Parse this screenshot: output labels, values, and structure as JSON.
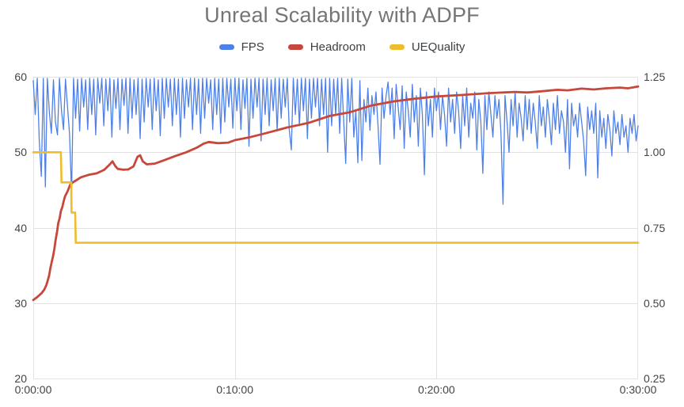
{
  "title": "Unreal Scalability with ADPF",
  "chart_data": {
    "type": "line",
    "title": "Unreal Scalability with ADPF",
    "grid": true,
    "grid_color": "#e2e2e2",
    "legend_position": "top",
    "x_axis": {
      "unit": "elapsed time h:mm:ss",
      "min": 0,
      "max": 30,
      "ticks": [
        {
          "t": 0,
          "label": "0:00:00"
        },
        {
          "t": 10,
          "label": "0:10:00"
        },
        {
          "t": 20,
          "label": "0:20:00"
        },
        {
          "t": 30,
          "label": "0:30:00"
        }
      ]
    },
    "left_axis": {
      "min": 20,
      "max": 60,
      "ticks": [
        {
          "v": 60,
          "label": "60"
        },
        {
          "v": 50,
          "label": "50"
        },
        {
          "v": 40,
          "label": "40"
        },
        {
          "v": 30,
          "label": "30"
        },
        {
          "v": 20,
          "label": "20"
        }
      ]
    },
    "right_axis": {
      "min": 0.25,
      "max": 1.25,
      "ticks": [
        {
          "v": 1.25,
          "label": "1.25"
        },
        {
          "v": 1.0,
          "label": "1.00"
        },
        {
          "v": 0.75,
          "label": "0.75"
        },
        {
          "v": 0.5,
          "label": "0.50"
        },
        {
          "v": 0.25,
          "label": "0.25"
        }
      ]
    },
    "series": [
      {
        "name": "FPS",
        "color": "#4e80e8",
        "axis": "left",
        "stroke_width": 1.3,
        "t0": 0,
        "dt": 0.1,
        "values": [
          59.5,
          55,
          59.8,
          51.5,
          46.8,
          59.8,
          45.4,
          59.8,
          55.2,
          52.5,
          59.6,
          54,
          52.3,
          59.8,
          55.5,
          53,
          59.7,
          56,
          52.5,
          44.5,
          59.8,
          54.5,
          59.7,
          52.8,
          59.8,
          56,
          59.6,
          53,
          59.8,
          55,
          59.7,
          52.3,
          59.8,
          56.5,
          59.8,
          53.5,
          59.7,
          55.5,
          59.8,
          52,
          59.6,
          55.8,
          59.8,
          53,
          59.7,
          56.2,
          59.8,
          52.5,
          59.8,
          54.5,
          59.6,
          55,
          59.8,
          51.8,
          59.7,
          54,
          59.8,
          56,
          59.7,
          53,
          59.8,
          55.5,
          59.6,
          52.2,
          59.8,
          54.5,
          59.8,
          56,
          59.7,
          53.5,
          59.8,
          55,
          59.7,
          52,
          59.8,
          54.5,
          59.6,
          56,
          59.8,
          53,
          59.8,
          55,
          59.7,
          52.5,
          59.8,
          54.5,
          59.8,
          56.5,
          59.6,
          53,
          59.8,
          55,
          59.7,
          52.5,
          59.8,
          54,
          59.8,
          56,
          59.7,
          53.2,
          59.8,
          55.5,
          59.8,
          53,
          59.6,
          55.8,
          59.8,
          50.8,
          59.7,
          54.5,
          59.8,
          56,
          59.8,
          51.5,
          59.7,
          55,
          59.8,
          53.5,
          59.6,
          55.5,
          59.8,
          52.8,
          59.8,
          54.5,
          59.7,
          56,
          59.8,
          53,
          50.3,
          59.8,
          55,
          59.7,
          53.5,
          59.8,
          55.5,
          59.8,
          51.8,
          59.7,
          54.5,
          59.8,
          56,
          59.8,
          53.5,
          59.7,
          55,
          59.8,
          50,
          59.8,
          53.5,
          59.7,
          55,
          59.8,
          52.5,
          59.8,
          54,
          48.5,
          59.7,
          54,
          59.8,
          52,
          55.5,
          48.6,
          59.5,
          48.9,
          57,
          54,
          58.5,
          52.9,
          57.5,
          55,
          58,
          53.5,
          48.4,
          58.5,
          54.5,
          57.5,
          59.3,
          55,
          58.5,
          51.8,
          59,
          56,
          53,
          58.8,
          50.5,
          58,
          55.5,
          52,
          59,
          54,
          57.5,
          50.8,
          58.5,
          55,
          47,
          58,
          53.5,
          57,
          52,
          58.5,
          55.5,
          58,
          53,
          57.5,
          55,
          50.8,
          58.5,
          54,
          57,
          52.5,
          58,
          55.5,
          50.5,
          57.5,
          53.5,
          58.5,
          52,
          56.5,
          54.5,
          58,
          50.3,
          57,
          54,
          47.2,
          57.5,
          53,
          58,
          55,
          52,
          57.5,
          54.5,
          57,
          52.5,
          43.1,
          57.5,
          54,
          50,
          57,
          53.5,
          58,
          52,
          56.5,
          54.5,
          51.5,
          57.5,
          53,
          57,
          52.5,
          56.5,
          54,
          50.5,
          57.5,
          53.5,
          56,
          52,
          57,
          54.5,
          51,
          56.5,
          53,
          57.5,
          52.5,
          55.5,
          54,
          50,
          57,
          47.8,
          56.5,
          53.5,
          55,
          52,
          56.5,
          54,
          51.5,
          46.9,
          56,
          53,
          55.5,
          52.5,
          56.5,
          46.6,
          55.5,
          52,
          54.5,
          50.5,
          55,
          53,
          49.5,
          55.5,
          52.5,
          54,
          51,
          55,
          52,
          53.5,
          50,
          54.5,
          52.5,
          55,
          51.5,
          53.5
        ]
      },
      {
        "name": "Headroom",
        "color": "#c8473b",
        "axis": "right",
        "stroke_width": 2.8,
        "points": [
          [
            0,
            0.51
          ],
          [
            0.2,
            0.52
          ],
          [
            0.4,
            0.532
          ],
          [
            0.55,
            0.545
          ],
          [
            0.65,
            0.56
          ],
          [
            0.72,
            0.575
          ],
          [
            0.79,
            0.592
          ],
          [
            0.85,
            0.615
          ],
          [
            0.92,
            0.637
          ],
          [
            0.98,
            0.655
          ],
          [
            1.05,
            0.68
          ],
          [
            1.11,
            0.71
          ],
          [
            1.18,
            0.737
          ],
          [
            1.24,
            0.765
          ],
          [
            1.31,
            0.782
          ],
          [
            1.37,
            0.805
          ],
          [
            1.44,
            0.818
          ],
          [
            1.5,
            0.835
          ],
          [
            1.57,
            0.853
          ],
          [
            1.7,
            0.87
          ],
          [
            1.83,
            0.892
          ],
          [
            1.96,
            0.9
          ],
          [
            2.09,
            0.905
          ],
          [
            2.36,
            0.917
          ],
          [
            2.75,
            0.925
          ],
          [
            3.15,
            0.93
          ],
          [
            3.53,
            0.942
          ],
          [
            3.8,
            0.96
          ],
          [
            3.93,
            0.97
          ],
          [
            4.06,
            0.955
          ],
          [
            4.19,
            0.945
          ],
          [
            4.45,
            0.942
          ],
          [
            4.71,
            0.943
          ],
          [
            4.97,
            0.953
          ],
          [
            5.17,
            0.985
          ],
          [
            5.3,
            0.99
          ],
          [
            5.43,
            0.97
          ],
          [
            5.63,
            0.96
          ],
          [
            6.02,
            0.962
          ],
          [
            6.55,
            0.975
          ],
          [
            7.07,
            0.988
          ],
          [
            7.59,
            1.0
          ],
          [
            8.11,
            1.015
          ],
          [
            8.44,
            1.028
          ],
          [
            8.7,
            1.034
          ],
          [
            9.16,
            1.03
          ],
          [
            9.68,
            1.032
          ],
          [
            10,
            1.04
          ],
          [
            10.76,
            1.05
          ],
          [
            11.54,
            1.063
          ],
          [
            12.59,
            1.082
          ],
          [
            13.64,
            1.097
          ],
          [
            14.69,
            1.12
          ],
          [
            15.73,
            1.133
          ],
          [
            16.78,
            1.155
          ],
          [
            17.83,
            1.168
          ],
          [
            18.87,
            1.177
          ],
          [
            20,
            1.185
          ],
          [
            21.3,
            1.19
          ],
          [
            22.6,
            1.196
          ],
          [
            23.9,
            1.2
          ],
          [
            24.5,
            1.198
          ],
          [
            25.2,
            1.202
          ],
          [
            26,
            1.207
          ],
          [
            26.5,
            1.205
          ],
          [
            27.2,
            1.211
          ],
          [
            27.8,
            1.208
          ],
          [
            28.4,
            1.212
          ],
          [
            29.1,
            1.214
          ],
          [
            29.5,
            1.212
          ],
          [
            30,
            1.218
          ]
        ]
      },
      {
        "name": "UEQuality",
        "color": "#efbc2d",
        "axis": "right",
        "stroke_width": 2.6,
        "points": [
          [
            0,
            1.0
          ],
          [
            1.37,
            1.0
          ],
          [
            1.4,
            0.9
          ],
          [
            1.88,
            0.9
          ],
          [
            1.9,
            0.8
          ],
          [
            2.08,
            0.8
          ],
          [
            2.11,
            0.7
          ],
          [
            30,
            0.7
          ]
        ]
      }
    ]
  }
}
